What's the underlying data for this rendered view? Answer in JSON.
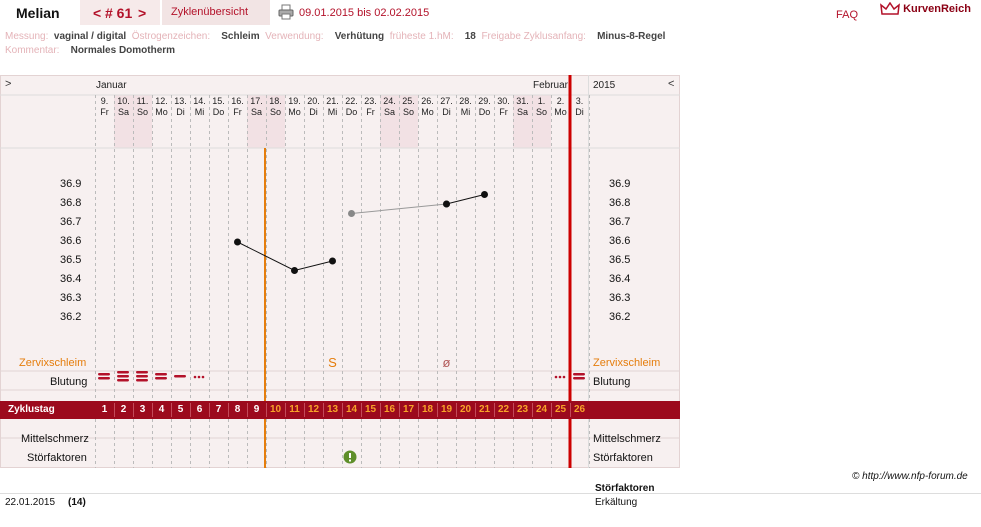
{
  "header": {
    "user": "Melian",
    "cycle_prev": "<",
    "cycle_label": "# 61",
    "cycle_next": ">",
    "overview_tab": "Zyklenübersicht",
    "date_range": "09.01.2015 bis 02.02.2015",
    "faq": "FAQ",
    "logo": "KurvenReich"
  },
  "info": {
    "messung_label": "Messung:",
    "messung_value": "vaginal / digital",
    "oestrogen_label": "Östrogenzeichen:",
    "oestrogen_value": "Schleim",
    "verwendung_label": "Verwendung:",
    "verwendung_value": "Verhütung",
    "hm_label": "früheste 1.hM:",
    "hm_value": "18",
    "freigabe_label": "Freigabe Zyklusanfang:",
    "freigabe_value": "Minus-8-Regel",
    "kommentar_label": "Kommentar:",
    "kommentar_value": "Normales Domotherm"
  },
  "chart": {
    "nav_left": ">",
    "nav_right": "<",
    "month_1": "Januar",
    "month_2": "Februar",
    "year": "2015",
    "day_numbers": [
      "9.",
      "10.",
      "11.",
      "12.",
      "13.",
      "14.",
      "15.",
      "16.",
      "17.",
      "18.",
      "19.",
      "20.",
      "21.",
      "22.",
      "23.",
      "24.",
      "25.",
      "26.",
      "27.",
      "28.",
      "29.",
      "30.",
      "31.",
      "1.",
      "2.",
      "3."
    ],
    "weekdays": [
      "Fr",
      "Sa",
      "So",
      "Mo",
      "Di",
      "Mi",
      "Do",
      "Fr",
      "Sa",
      "So",
      "Mo",
      "Di",
      "Mi",
      "Do",
      "Fr",
      "Sa",
      "So",
      "Mo",
      "Di",
      "Mi",
      "Do",
      "Fr",
      "Sa",
      "So",
      "Mo",
      "Di"
    ],
    "weekend_columns": [
      1,
      2,
      8,
      9,
      15,
      16,
      22,
      23
    ],
    "row_zervix": "Zervixschleim",
    "row_blutung": "Blutung",
    "row_zyklustag": "Zyklustag",
    "row_mittelschmerz": "Mittelschmerz",
    "row_stoerfaktoren": "Störfaktoren",
    "cycle_days": [
      "1",
      "2",
      "3",
      "4",
      "5",
      "6",
      "7",
      "8",
      "9",
      "10",
      "11",
      "12",
      "13",
      "14",
      "15",
      "16",
      "17",
      "18",
      "19",
      "20",
      "21",
      "22",
      "23",
      "24",
      "25",
      "26"
    ],
    "zervix_symbols": [
      {
        "col": 12,
        "symbol": "S"
      },
      {
        "col": 18,
        "symbol": "ø"
      }
    ],
    "disturbance_icon": "exclamation-icon",
    "colors": {
      "accent": "#b3122a",
      "cover_line": "#e57d0c",
      "period_line": "#cc0000",
      "weekend": "#f2e1e4",
      "cycle_bar": "#9c0a1d"
    }
  },
  "chart_data": {
    "type": "line",
    "ylim": [
      36.1,
      37.0
    ],
    "yticks": [
      "36.9",
      "36.8",
      "36.7",
      "36.6",
      "36.5",
      "36.4",
      "36.3",
      "36.2"
    ],
    "series": [
      {
        "values": [
          [
            7,
            36.6
          ],
          [
            10,
            36.45
          ],
          [
            12,
            36.5
          ]
        ],
        "excluded": false
      },
      {
        "values": [
          [
            13,
            36.75
          ],
          [
            18,
            36.8
          ]
        ],
        "excluded": true
      },
      {
        "values": [
          [
            18,
            36.8
          ],
          [
            20,
            36.85
          ]
        ],
        "excluded": false
      }
    ]
  },
  "footer": {
    "copyright": "© http://www.nfp-forum.de",
    "date": "22.01.2015",
    "day_count": "(14)",
    "stoer_title": "Störfaktoren",
    "stoer_value": "Erkältung"
  }
}
